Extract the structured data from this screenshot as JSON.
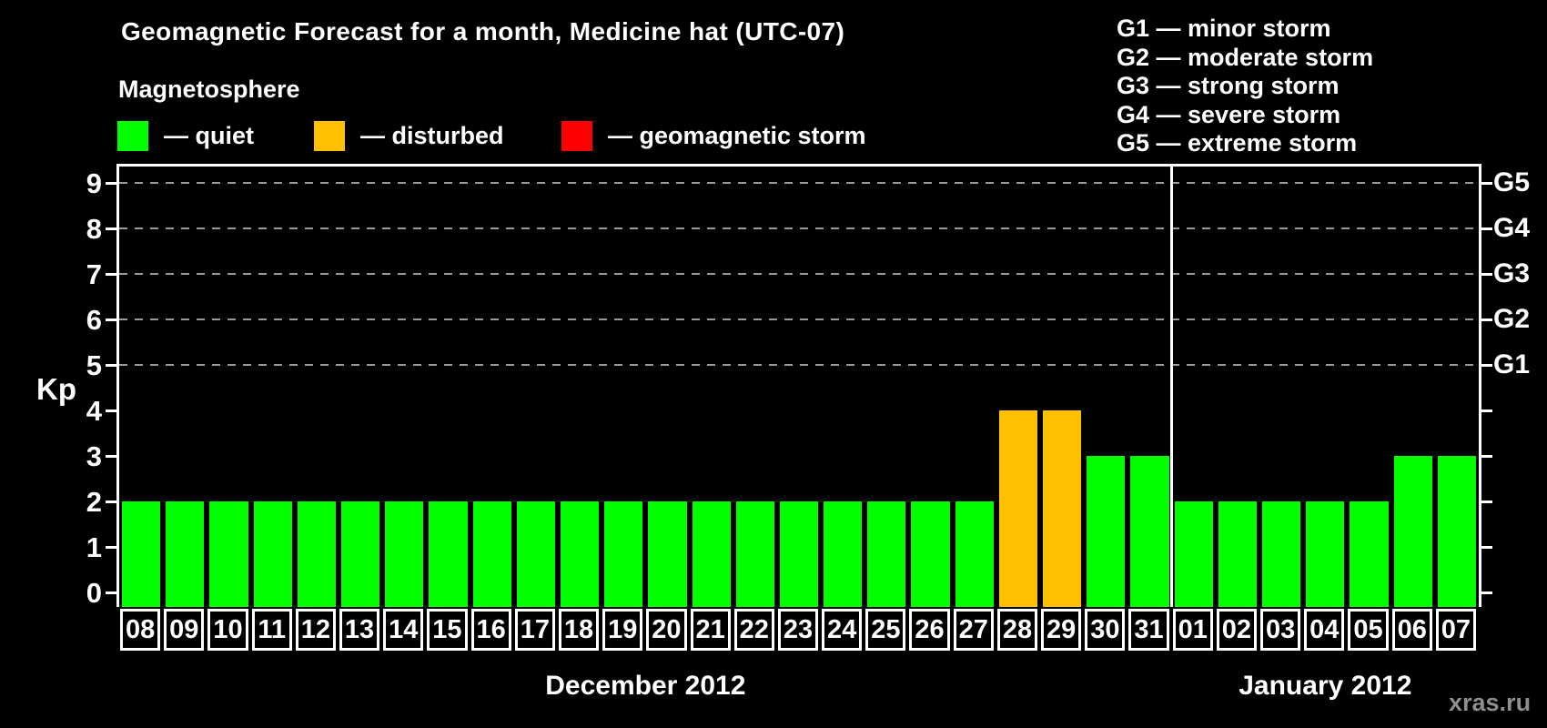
{
  "header": {
    "title": "Geomagnetic Forecast for a month, Medicine hat (UTC-07)",
    "subtitle": "Magnetosphere"
  },
  "legend": {
    "items": [
      {
        "id": "quiet",
        "label": "— quiet"
      },
      {
        "id": "disturbed",
        "label": "— disturbed"
      },
      {
        "id": "storm",
        "label": "— geomagnetic storm"
      }
    ]
  },
  "g_scale_legend": [
    "G1 — minor storm",
    "G2 — moderate storm",
    "G3 — strong storm",
    "G4 — severe storm",
    "G5 — extreme storm"
  ],
  "colors": {
    "quiet": "#00ff00",
    "disturbed": "#ffc000",
    "storm": "#ff0000",
    "grid": "#999999",
    "axis": "#ffffff",
    "watermark": "#8f8f8f"
  },
  "watermark": "xras.ru",
  "chart_data": {
    "type": "bar",
    "title": "Geomagnetic Forecast for a month, Medicine hat (UTC-07)",
    "ylabel": "Kp",
    "ylim": [
      0,
      9
    ],
    "y_ticks": [
      0,
      1,
      2,
      3,
      4,
      5,
      6,
      7,
      8,
      9
    ],
    "grid": "dashed-at-storm-levels",
    "right_axis": [
      {
        "label": "G1",
        "kp": 5
      },
      {
        "label": "G2",
        "kp": 6
      },
      {
        "label": "G3",
        "kp": 7
      },
      {
        "label": "G4",
        "kp": 8
      },
      {
        "label": "G5",
        "kp": 9
      }
    ],
    "months": [
      {
        "label": "December 2012",
        "days": [
          {
            "day": "08",
            "kp": 2,
            "status": "quiet"
          },
          {
            "day": "09",
            "kp": 2,
            "status": "quiet"
          },
          {
            "day": "10",
            "kp": 2,
            "status": "quiet"
          },
          {
            "day": "11",
            "kp": 2,
            "status": "quiet"
          },
          {
            "day": "12",
            "kp": 2,
            "status": "quiet"
          },
          {
            "day": "13",
            "kp": 2,
            "status": "quiet"
          },
          {
            "day": "14",
            "kp": 2,
            "status": "quiet"
          },
          {
            "day": "15",
            "kp": 2,
            "status": "quiet"
          },
          {
            "day": "16",
            "kp": 2,
            "status": "quiet"
          },
          {
            "day": "17",
            "kp": 2,
            "status": "quiet"
          },
          {
            "day": "18",
            "kp": 2,
            "status": "quiet"
          },
          {
            "day": "19",
            "kp": 2,
            "status": "quiet"
          },
          {
            "day": "20",
            "kp": 2,
            "status": "quiet"
          },
          {
            "day": "21",
            "kp": 2,
            "status": "quiet"
          },
          {
            "day": "22",
            "kp": 2,
            "status": "quiet"
          },
          {
            "day": "23",
            "kp": 2,
            "status": "quiet"
          },
          {
            "day": "24",
            "kp": 2,
            "status": "quiet"
          },
          {
            "day": "25",
            "kp": 2,
            "status": "quiet"
          },
          {
            "day": "26",
            "kp": 2,
            "status": "quiet"
          },
          {
            "day": "27",
            "kp": 2,
            "status": "quiet"
          },
          {
            "day": "28",
            "kp": 4,
            "status": "disturbed"
          },
          {
            "day": "29",
            "kp": 4,
            "status": "disturbed"
          },
          {
            "day": "30",
            "kp": 3,
            "status": "quiet"
          },
          {
            "day": "31",
            "kp": 3,
            "status": "quiet"
          }
        ]
      },
      {
        "label": "January 2012",
        "days": [
          {
            "day": "01",
            "kp": 2,
            "status": "quiet"
          },
          {
            "day": "02",
            "kp": 2,
            "status": "quiet"
          },
          {
            "day": "03",
            "kp": 2,
            "status": "quiet"
          },
          {
            "day": "04",
            "kp": 2,
            "status": "quiet"
          },
          {
            "day": "05",
            "kp": 2,
            "status": "quiet"
          },
          {
            "day": "06",
            "kp": 3,
            "status": "quiet"
          },
          {
            "day": "07",
            "kp": 3,
            "status": "quiet"
          }
        ]
      }
    ]
  }
}
